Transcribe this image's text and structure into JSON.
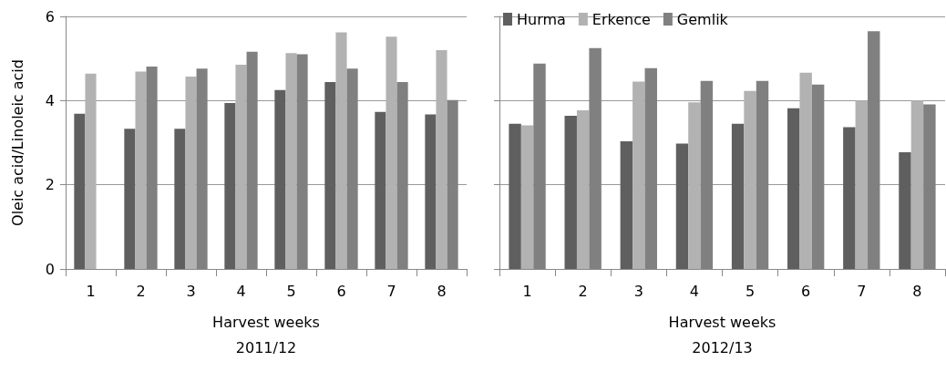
{
  "chart_data": [
    {
      "type": "bar",
      "xlabel": "Harvest weeks\n2011/12",
      "ylabel": "Oleic acid/Linoleic acid",
      "categories": [
        "1",
        "2",
        "3",
        "4",
        "5",
        "6",
        "7",
        "8"
      ],
      "ylim": [
        0,
        6
      ],
      "yticks": [
        0,
        2,
        4,
        6
      ],
      "grid": "y",
      "legend": false,
      "series": [
        {
          "color": "#5f5f5f",
          "values": [
            3.69,
            3.33,
            3.33,
            3.94,
            4.25,
            4.44,
            3.73,
            3.67
          ]
        },
        {
          "color": "#b2b2b2",
          "values": [
            4.64,
            4.69,
            4.57,
            4.85,
            5.13,
            5.62,
            5.52,
            5.2
          ]
        },
        {
          "color": "#808080",
          "values": [
            null,
            4.81,
            4.76,
            5.16,
            5.1,
            4.76,
            4.44,
            4.01
          ]
        }
      ]
    },
    {
      "type": "bar",
      "xlabel": "Harvest weeks\n2012/13",
      "categories": [
        "1",
        "2",
        "3",
        "4",
        "5",
        "6",
        "7",
        "8"
      ],
      "ylim": [
        0,
        6
      ],
      "yticks": [
        0,
        2,
        4,
        6
      ],
      "tick_labels": "x",
      "grid": "y",
      "legend": "top left",
      "series": [
        {
          "name": "Hurma",
          "color": "#5f5f5f",
          "values": [
            3.45,
            3.64,
            3.03,
            2.98,
            3.45,
            3.82,
            3.37,
            2.77
          ]
        },
        {
          "name": "Erkence",
          "color": "#b2b2b2",
          "values": [
            3.41,
            3.77,
            4.45,
            3.96,
            4.23,
            4.66,
            4.0,
            4.0
          ]
        },
        {
          "name": "Gemlik",
          "color": "#808080",
          "values": [
            4.88,
            5.25,
            4.77,
            4.47,
            4.47,
            4.38,
            5.65,
            3.91
          ]
        }
      ]
    }
  ]
}
